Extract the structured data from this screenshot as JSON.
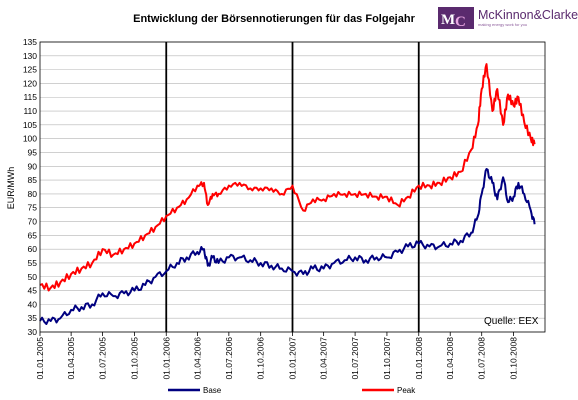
{
  "logo": {
    "monogram_m": "M",
    "monogram_c": "C",
    "name": "McKinnon&Clarke",
    "tagline": "making energy work for you",
    "color": "#5a2a6e",
    "accent": "#c66cbf"
  },
  "chart_data": {
    "type": "line",
    "title": "Entwicklung der Börsennotierungen für das Folgejahr",
    "ylabel": "EUR/MWh",
    "xlabel": "",
    "ylim": [
      30,
      135
    ],
    "yticks": [
      30,
      35,
      40,
      45,
      50,
      55,
      60,
      65,
      70,
      75,
      80,
      85,
      90,
      95,
      100,
      105,
      110,
      115,
      120,
      125,
      130,
      135
    ],
    "xlim": [
      "2005-01-01",
      "2008-12-31"
    ],
    "x_tick_labels": [
      "01.01.2005",
      "01.04.2005",
      "01.07.2005",
      "01.10.2005",
      "01.01.2006",
      "01.04.2006",
      "01.07.2006",
      "01.10.2006",
      "01.01.2007",
      "01.04.2007",
      "01.07.2007",
      "01.10.2007",
      "01.01.2008",
      "01.04.2008",
      "01.07.2008",
      "01.10.2008"
    ],
    "year_separators": [
      "01.01.2006",
      "01.01.2007",
      "01.01.2008"
    ],
    "grid": true,
    "annotation": "Quelle: EEX",
    "legend_position": "bottom",
    "series": [
      {
        "name": "Base",
        "color": "#000080",
        "x": [
          "2005-01-01",
          "2005-02-01",
          "2005-03-01",
          "2005-04-01",
          "2005-05-01",
          "2005-06-01",
          "2005-07-01",
          "2005-08-01",
          "2005-09-01",
          "2005-10-01",
          "2005-11-01",
          "2005-12-01",
          "2006-01-01",
          "2006-02-01",
          "2006-03-01",
          "2006-04-01",
          "2006-04-20",
          "2006-05-01",
          "2006-05-15",
          "2006-06-01",
          "2006-07-01",
          "2006-08-01",
          "2006-09-01",
          "2006-10-01",
          "2006-11-01",
          "2006-12-01",
          "2007-01-01",
          "2007-02-01",
          "2007-03-01",
          "2007-04-01",
          "2007-05-01",
          "2007-06-01",
          "2007-07-01",
          "2007-08-01",
          "2007-09-01",
          "2007-10-01",
          "2007-11-01",
          "2007-12-01",
          "2008-01-01",
          "2008-02-01",
          "2008-03-01",
          "2008-04-01",
          "2008-05-01",
          "2008-06-01",
          "2008-06-20",
          "2008-07-01",
          "2008-07-15",
          "2008-08-01",
          "2008-08-15",
          "2008-09-01",
          "2008-09-15",
          "2008-10-01",
          "2008-10-15",
          "2008-11-01",
          "2008-11-20",
          "2008-12-01"
        ],
        "values": [
          34,
          34,
          35,
          38,
          39,
          40,
          44,
          43,
          44,
          45,
          47,
          50,
          52,
          55,
          57,
          59,
          60,
          54,
          57,
          55,
          57,
          57,
          56,
          55,
          54,
          53,
          52,
          51,
          53,
          53,
          55,
          56,
          57,
          56,
          57,
          57,
          59,
          61,
          62,
          61,
          61,
          62,
          63,
          66,
          72,
          80,
          89,
          84,
          78,
          86,
          77,
          79,
          84,
          80,
          74,
          69
        ]
      },
      {
        "name": "Peak",
        "color": "#ff0000",
        "x": [
          "2005-01-01",
          "2005-02-01",
          "2005-03-01",
          "2005-04-01",
          "2005-05-01",
          "2005-06-01",
          "2005-07-01",
          "2005-08-01",
          "2005-09-01",
          "2005-10-01",
          "2005-11-01",
          "2005-12-01",
          "2006-01-01",
          "2006-02-01",
          "2006-03-01",
          "2006-04-01",
          "2006-04-20",
          "2006-05-01",
          "2006-05-15",
          "2006-06-01",
          "2006-07-01",
          "2006-08-01",
          "2006-09-01",
          "2006-10-01",
          "2006-11-01",
          "2006-12-01",
          "2007-01-01",
          "2007-02-01",
          "2007-03-01",
          "2007-04-01",
          "2007-05-01",
          "2007-06-01",
          "2007-07-01",
          "2007-08-01",
          "2007-09-01",
          "2007-10-01",
          "2007-11-01",
          "2007-12-01",
          "2008-01-01",
          "2008-02-01",
          "2008-03-01",
          "2008-04-01",
          "2008-05-01",
          "2008-06-01",
          "2008-06-20",
          "2008-07-01",
          "2008-07-15",
          "2008-08-01",
          "2008-08-15",
          "2008-09-01",
          "2008-09-15",
          "2008-10-01",
          "2008-10-15",
          "2008-11-01",
          "2008-11-20",
          "2008-12-01"
        ],
        "values": [
          47,
          46,
          48,
          51,
          53,
          55,
          60,
          58,
          60,
          62,
          65,
          68,
          72,
          75,
          78,
          83,
          84,
          76,
          80,
          80,
          83,
          84,
          82,
          82,
          82,
          80,
          83,
          74,
          78,
          78,
          80,
          80,
          80,
          80,
          79,
          79,
          76,
          79,
          83,
          83,
          84,
          86,
          88,
          96,
          105,
          118,
          127,
          110,
          118,
          105,
          116,
          112,
          115,
          106,
          100,
          98
        ]
      }
    ]
  }
}
